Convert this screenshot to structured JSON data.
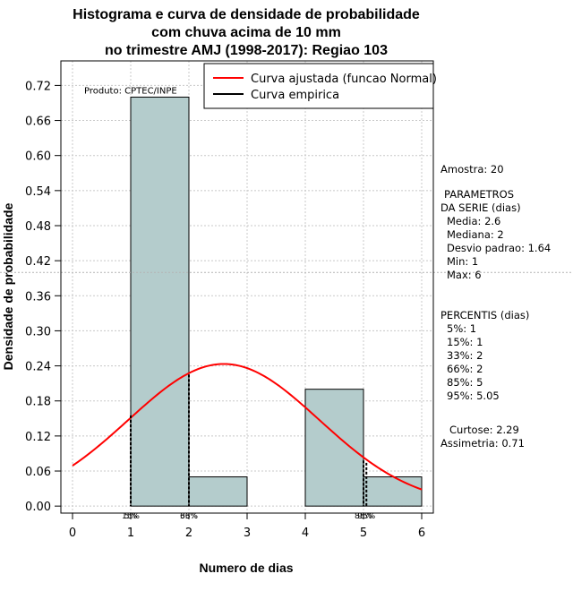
{
  "chart_data": {
    "type": "bar",
    "title": [
      "Histograma e curva de densidade de probabilidade",
      "com chuva acima de 10 mm",
      "no trimestre AMJ (1998-2017): Regiao 103"
    ],
    "xlabel": "Numero de dias",
    "ylabel": "Densidade de probabilidade",
    "xlim": [
      -0.2,
      6.2
    ],
    "ylim": [
      -0.012,
      0.762
    ],
    "x_ticks": [
      0,
      1,
      2,
      3,
      4,
      5,
      6
    ],
    "y_ticks": [
      "0.00",
      "0.06",
      "0.12",
      "0.18",
      "0.24",
      "0.30",
      "0.36",
      "0.42",
      "0.48",
      "0.54",
      "0.60",
      "0.66",
      "0.72"
    ],
    "grid": true,
    "bins": [
      {
        "x0": 1,
        "x1": 2,
        "density": 0.7
      },
      {
        "x0": 2,
        "x1": 3,
        "density": 0.05
      },
      {
        "x0": 3,
        "x1": 4,
        "density": 0.0
      },
      {
        "x0": 4,
        "x1": 5,
        "density": 0.2
      },
      {
        "x0": 5,
        "x1": 6,
        "density": 0.05
      }
    ],
    "fitted_normal": {
      "mean": 2.6,
      "sd": 1.64
    },
    "empirical_curve": [
      {
        "x": 1.0,
        "y": 0.155
      },
      {
        "x": 2.0,
        "y": 0.225
      },
      {
        "x": 5.0,
        "y": 0.078
      },
      {
        "x": 5.05,
        "y": 0.074
      }
    ],
    "percentile_markers": [
      {
        "label": "5%",
        "x": 1.0
      },
      {
        "label": "15%",
        "x": 1.0
      },
      {
        "label": "33%",
        "x": 2.0
      },
      {
        "label": "66%",
        "x": 2.0
      },
      {
        "label": "85%",
        "x": 5.0
      },
      {
        "label": "95%",
        "x": 5.05
      }
    ],
    "percentile_label_text": [
      {
        "text": "15%",
        "x": 1.0
      },
      {
        "text": "66%",
        "x": 2.0
      },
      {
        "text": "85%",
        "x": 5.0
      },
      {
        "text": "95%",
        "x": 5.05
      }
    ],
    "hline_y": 0.4,
    "legend": {
      "position": "top-right",
      "entries": [
        {
          "label": "Curva ajustada (funcao Normal)",
          "color": "#ff0000"
        },
        {
          "label": "Curva empirica",
          "color": "#000000"
        }
      ]
    },
    "product_label": "Produto: CPTEC/INPE",
    "colors": {
      "bar_fill": "#b4cccc",
      "fitted": "#ff0000",
      "empirical": "#000000",
      "grid": "#c8c8c8"
    }
  },
  "stats_panel": {
    "amostra": "Amostra: 20",
    "params_header_1": "PARAMETROS",
    "params_header_2": "DA SERIE (dias)",
    "media": "Media: 2.6",
    "mediana": "Mediana: 2",
    "desvio": "Desvio padrao: 1.64",
    "min": "Min: 1",
    "max": "Max: 6",
    "percentis_header": "PERCENTIS (dias)",
    "p5": "5%: 1",
    "p15": "15%: 1",
    "p33": "33%: 2",
    "p66": "66%: 2",
    "p85": "85%: 5",
    "p95": "95%: 5.05",
    "curtose": "Curtose: 2.29",
    "assimetria": "Assimetria: 0.71"
  }
}
